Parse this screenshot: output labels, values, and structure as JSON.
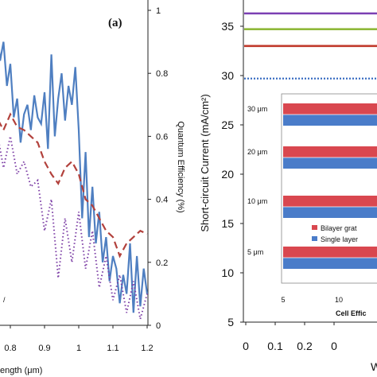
{
  "chart_data": [
    {
      "type": "line",
      "panel_label": "(a)",
      "xlabel": "ength (μm)",
      "ylabel_right": "Quantum Efficiency (%)",
      "corner_text": "/",
      "xlim": [
        0.65,
        1.2
      ],
      "ylim_right": [
        0,
        1
      ],
      "x_ticks": [
        "0.8",
        "0.9",
        "1",
        "1.1",
        "1.2"
      ],
      "y_ticks_right": [
        "0",
        "0.2",
        "0.4",
        "0.6",
        "0.8",
        "1"
      ],
      "colors": {
        "blue": "#4f7fc1",
        "red": "#b2413c",
        "purple": "#7d3fa6"
      },
      "series": [
        {
          "style": "solid",
          "color": "blue",
          "x": [
            0.66,
            0.67,
            0.68,
            0.69,
            0.7,
            0.71,
            0.72,
            0.73,
            0.74,
            0.75,
            0.76,
            0.77,
            0.78,
            0.79,
            0.8,
            0.81,
            0.82,
            0.83,
            0.84,
            0.85,
            0.86,
            0.87,
            0.88,
            0.89,
            0.9,
            0.91,
            0.92,
            0.93,
            0.94,
            0.95,
            0.96,
            0.97,
            0.98,
            0.99,
            1.0,
            1.01,
            1.02,
            1.03,
            1.04,
            1.05,
            1.06,
            1.07,
            1.08,
            1.09,
            1.1,
            1.11,
            1.12,
            1.13,
            1.14,
            1.15,
            1.16,
            1.17,
            1.18,
            1.19,
            1.2
          ],
          "values": [
            0.95,
            0.92,
            0.96,
            0.88,
            0.93,
            0.97,
            0.85,
            0.91,
            0.94,
            0.88,
            0.95,
            0.84,
            0.9,
            0.76,
            0.83,
            0.66,
            0.72,
            0.58,
            0.67,
            0.7,
            0.62,
            0.73,
            0.66,
            0.64,
            0.74,
            0.56,
            0.86,
            0.6,
            0.72,
            0.8,
            0.65,
            0.76,
            0.7,
            0.82,
            0.62,
            0.34,
            0.55,
            0.28,
            0.44,
            0.26,
            0.36,
            0.2,
            0.28,
            0.14,
            0.22,
            0.18,
            0.07,
            0.16,
            0.1,
            0.26,
            0.04,
            0.22,
            0.06,
            0.18,
            0.1
          ]
        },
        {
          "style": "dashed",
          "color": "red",
          "x": [
            0.66,
            0.68,
            0.7,
            0.72,
            0.74,
            0.76,
            0.78,
            0.8,
            0.82,
            0.84,
            0.86,
            0.88,
            0.9,
            0.92,
            0.94,
            0.96,
            0.98,
            1.0,
            1.02,
            1.04,
            1.06,
            1.08,
            1.1,
            1.12,
            1.14,
            1.16,
            1.18,
            1.2
          ],
          "values": [
            0.7,
            0.72,
            0.76,
            0.75,
            0.73,
            0.66,
            0.62,
            0.67,
            0.63,
            0.62,
            0.6,
            0.58,
            0.52,
            0.48,
            0.45,
            0.5,
            0.52,
            0.48,
            0.4,
            0.38,
            0.34,
            0.3,
            0.28,
            0.22,
            0.26,
            0.28,
            0.3,
            0.29
          ]
        },
        {
          "style": "dotted",
          "color": "purple",
          "x": [
            0.66,
            0.68,
            0.7,
            0.72,
            0.74,
            0.76,
            0.78,
            0.8,
            0.82,
            0.84,
            0.86,
            0.88,
            0.9,
            0.92,
            0.94,
            0.96,
            0.98,
            1.0,
            1.02,
            1.04,
            1.06,
            1.08,
            1.1,
            1.12,
            1.14,
            1.16,
            1.18,
            1.2
          ],
          "values": [
            0.63,
            0.66,
            0.72,
            0.68,
            0.55,
            0.62,
            0.5,
            0.6,
            0.48,
            0.52,
            0.44,
            0.46,
            0.3,
            0.4,
            0.15,
            0.34,
            0.2,
            0.36,
            0.18,
            0.3,
            0.12,
            0.22,
            0.08,
            0.16,
            0.04,
            0.14,
            0.02,
            0.1
          ]
        }
      ]
    },
    {
      "type": "line",
      "ylabel": "Short-circuit Current  (mA/cm²)",
      "xlabel_partial": "W",
      "xlim": [
        0,
        0.38
      ],
      "ylim": [
        5,
        37
      ],
      "x_ticks": [
        "0",
        "0.1",
        "0.2",
        "0"
      ],
      "y_ticks": [
        "5",
        "10",
        "15",
        "20",
        "25",
        "30",
        "35"
      ],
      "series": [
        {
          "values": [
            36.3,
            36.3
          ],
          "color": "#7b3fb3",
          "style": "solid"
        },
        {
          "values": [
            34.7,
            34.7
          ],
          "color": "#8fb83a",
          "style": "solid"
        },
        {
          "values": [
            33.0,
            33.0
          ],
          "color": "#c0392b",
          "style": "solid"
        },
        {
          "values": [
            29.7,
            29.7
          ],
          "color": "#3b6fc2",
          "style": "dotted"
        }
      ],
      "inset": {
        "type": "bar",
        "orientation": "horizontal",
        "categories": [
          "30 μm",
          "20 μm",
          "10 μm",
          "5 μm"
        ],
        "xlabel": "Cell Effic",
        "x_ticks": [
          "5",
          "10"
        ],
        "xlim": [
          5,
          14
        ],
        "legend": [
          "Bilayer grat",
          "Single layer"
        ],
        "colors": {
          "bilayer": "#d9474f",
          "single": "#4a7cc9"
        }
      }
    }
  ]
}
